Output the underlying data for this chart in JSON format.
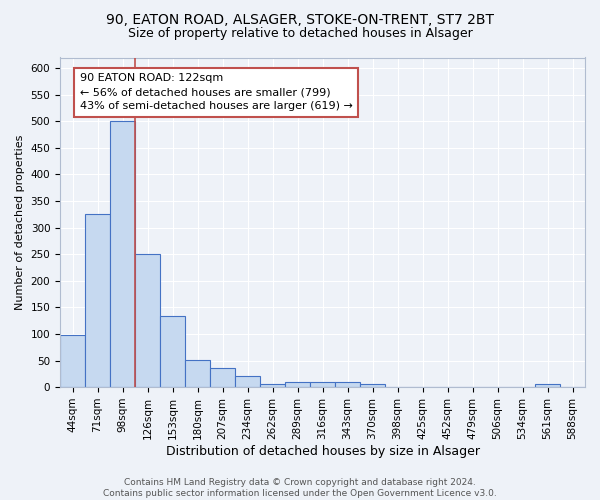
{
  "title1": "90, EATON ROAD, ALSAGER, STOKE-ON-TRENT, ST7 2BT",
  "title2": "Size of property relative to detached houses in Alsager",
  "xlabel": "Distribution of detached houses by size in Alsager",
  "ylabel": "Number of detached properties",
  "categories": [
    "44sqm",
    "71sqm",
    "98sqm",
    "126sqm",
    "153sqm",
    "180sqm",
    "207sqm",
    "234sqm",
    "262sqm",
    "289sqm",
    "316sqm",
    "343sqm",
    "370sqm",
    "398sqm",
    "425sqm",
    "452sqm",
    "479sqm",
    "506sqm",
    "534sqm",
    "561sqm",
    "588sqm"
  ],
  "values": [
    98,
    325,
    500,
    250,
    133,
    51,
    35,
    21,
    5,
    10,
    10,
    10,
    5,
    0,
    0,
    0,
    0,
    0,
    0,
    5,
    0
  ],
  "bar_color": "#c6d9f0",
  "bar_edge_color": "#4472c4",
  "reference_line_color": "#c0504d",
  "annotation_text": "90 EATON ROAD: 122sqm\n← 56% of detached houses are smaller (799)\n43% of semi-detached houses are larger (619) →",
  "annotation_box_color": "#ffffff",
  "annotation_box_edge_color": "#c0504d",
  "ylim": [
    0,
    620
  ],
  "yticks": [
    0,
    50,
    100,
    150,
    200,
    250,
    300,
    350,
    400,
    450,
    500,
    550,
    600
  ],
  "footer_text": "Contains HM Land Registry data © Crown copyright and database right 2024.\nContains public sector information licensed under the Open Government Licence v3.0.",
  "bg_color": "#eef2f8",
  "grid_color": "#ffffff",
  "title1_fontsize": 10,
  "title2_fontsize": 9,
  "xlabel_fontsize": 9,
  "ylabel_fontsize": 8,
  "tick_fontsize": 7.5,
  "annotation_fontsize": 8,
  "footer_fontsize": 6.5
}
